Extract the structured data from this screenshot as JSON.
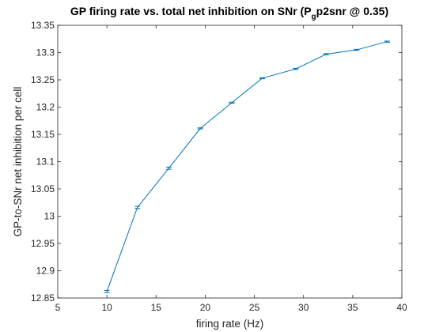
{
  "chart_data": {
    "type": "line",
    "title_main": "GP firing rate vs. total net inhibition on SNr (P",
    "title_sub": "g",
    "title_end": "p2snr @ 0.35)",
    "xlabel": "firing rate (Hz)",
    "ylabel": "GP-to-SNr net inhibition per cell",
    "xlim": [
      5,
      40
    ],
    "ylim": [
      12.85,
      13.35
    ],
    "xticks": [
      "5",
      "10",
      "15",
      "20",
      "25",
      "30",
      "35",
      "40"
    ],
    "yticks": [
      "12.85",
      "12.9",
      "12.95",
      "13",
      "13.05",
      "13.1",
      "13.15",
      "13.2",
      "13.25",
      "13.3",
      "13.35"
    ],
    "grid": false,
    "line_color": "#0072BD",
    "series": [
      {
        "x": [
          10.0,
          13.1,
          16.3,
          19.5,
          22.7,
          25.8,
          29.2,
          32.3,
          35.4,
          38.5
        ],
        "y": [
          12.862,
          13.016,
          13.088,
          13.161,
          13.208,
          13.253,
          13.27,
          13.297,
          13.305,
          13.32
        ],
        "err": [
          0.002,
          0.002,
          0.002,
          0.001,
          0.001,
          0.001,
          0.001,
          0.001,
          0.001,
          0.001
        ]
      }
    ]
  }
}
